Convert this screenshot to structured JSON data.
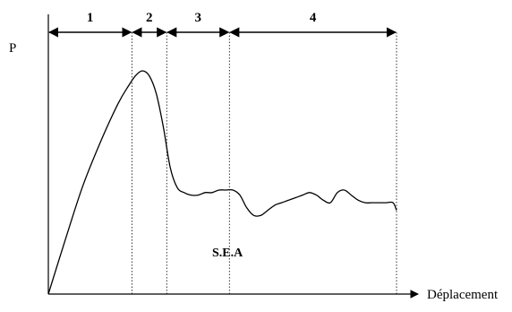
{
  "chart_data": {
    "type": "line",
    "title": "",
    "xlabel": "Déplacement",
    "ylabel": "P",
    "annotation": "S.E.A",
    "phases": [
      {
        "label": "1",
        "start": 0,
        "end": 0.24
      },
      {
        "label": "2",
        "start": 0.24,
        "end": 0.34
      },
      {
        "label": "3",
        "start": 0.34,
        "end": 0.52
      },
      {
        "label": "4",
        "start": 0.52,
        "end": 1.0
      }
    ],
    "xlim": [
      0,
      1.0
    ],
    "ylim": [
      0,
      1.0
    ],
    "grid": false,
    "series": [
      {
        "x": [
          0.0,
          0.05,
          0.1,
          0.15,
          0.2,
          0.23,
          0.25,
          0.27,
          0.29,
          0.31,
          0.33,
          0.35,
          0.37,
          0.39,
          0.41,
          0.43,
          0.45,
          0.47,
          0.49,
          0.51,
          0.53,
          0.55,
          0.57,
          0.59,
          0.61,
          0.63,
          0.65,
          0.67,
          0.69,
          0.71,
          0.73,
          0.75,
          0.77,
          0.79,
          0.81,
          0.83,
          0.85,
          0.87,
          0.89,
          0.91,
          0.93,
          0.95,
          0.97,
          0.99,
          1.0
        ],
        "y": [
          0.0,
          0.22,
          0.43,
          0.6,
          0.75,
          0.82,
          0.86,
          0.88,
          0.86,
          0.79,
          0.66,
          0.5,
          0.42,
          0.4,
          0.39,
          0.39,
          0.4,
          0.4,
          0.41,
          0.41,
          0.41,
          0.39,
          0.34,
          0.31,
          0.31,
          0.33,
          0.35,
          0.36,
          0.37,
          0.38,
          0.39,
          0.4,
          0.39,
          0.37,
          0.36,
          0.4,
          0.41,
          0.39,
          0.37,
          0.36,
          0.36,
          0.36,
          0.36,
          0.36,
          0.33
        ]
      }
    ]
  }
}
